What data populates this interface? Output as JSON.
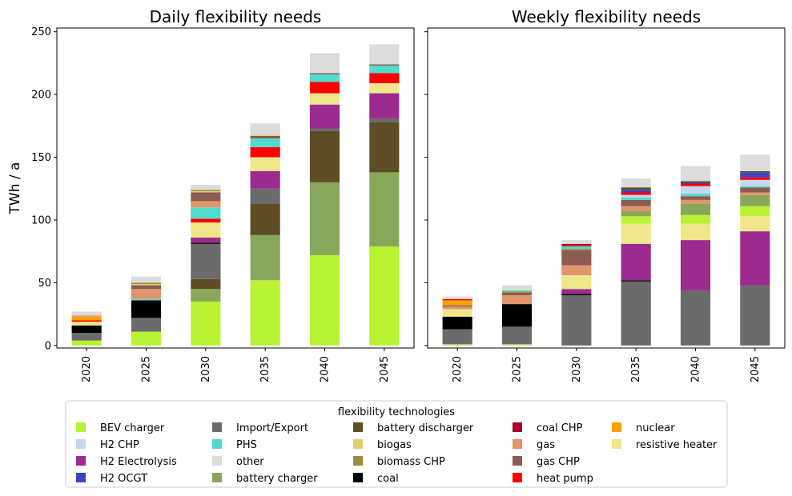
{
  "figure": {
    "ylabel": "TWh / a",
    "legend_title": "flexibility technologies",
    "legend_position": "bottom-center"
  },
  "chart_data": [
    {
      "type": "stacked-bar",
      "title": "Daily flexibility needs",
      "categories": [
        "2020",
        "2025",
        "2030",
        "2035",
        "2040",
        "2045"
      ],
      "ylim": [
        -2,
        253
      ],
      "yticks": [
        0,
        50,
        100,
        150,
        200,
        250
      ],
      "series": [
        {
          "name": "BEV charger",
          "values": [
            4,
            11,
            35,
            52,
            72,
            79
          ]
        },
        {
          "name": "battery charger",
          "values": [
            0,
            0,
            10,
            36,
            58,
            59
          ]
        },
        {
          "name": "battery discharger",
          "values": [
            0,
            0,
            8,
            25,
            41,
            40
          ]
        },
        {
          "name": "Import/Export",
          "values": [
            6,
            11,
            28,
            12,
            2,
            3
          ]
        },
        {
          "name": "coal",
          "values": [
            6,
            14,
            1,
            0,
            0,
            0
          ]
        },
        {
          "name": "H2 Electrolysis",
          "values": [
            0,
            0,
            4,
            14,
            19,
            20
          ]
        },
        {
          "name": "resistive heater",
          "values": [
            3,
            0,
            12,
            11,
            9,
            8
          ]
        },
        {
          "name": "heat pump",
          "values": [
            1,
            0,
            3,
            8,
            9,
            8
          ]
        },
        {
          "name": "nuclear",
          "values": [
            3,
            0,
            0,
            0,
            0,
            0
          ]
        },
        {
          "name": "PHS",
          "values": [
            0,
            1,
            9,
            7,
            6,
            6
          ]
        },
        {
          "name": "gas",
          "values": [
            1,
            8,
            5,
            0,
            0,
            0
          ]
        },
        {
          "name": "gas CHP",
          "values": [
            0,
            3,
            7,
            2,
            1,
            1
          ]
        },
        {
          "name": "biogas",
          "values": [
            0,
            1,
            1,
            1,
            0,
            0
          ]
        },
        {
          "name": "biomass CHP",
          "values": [
            0,
            1,
            1,
            0,
            0,
            0
          ]
        },
        {
          "name": "H2 OCGT",
          "values": [
            0,
            0,
            0,
            0,
            0,
            0
          ]
        },
        {
          "name": "H2 CHP",
          "values": [
            0,
            0,
            0,
            0,
            0,
            0
          ]
        },
        {
          "name": "coal CHP",
          "values": [
            0,
            0,
            0,
            0,
            0,
            0
          ]
        },
        {
          "name": "other",
          "values": [
            3,
            5,
            4,
            9,
            16,
            16
          ]
        }
      ]
    },
    {
      "type": "stacked-bar",
      "title": "Weekly flexibility needs",
      "categories": [
        "2020",
        "2025",
        "2030",
        "2035",
        "2040",
        "2045"
      ],
      "ylim": [
        -2,
        253
      ],
      "yticks": [
        0,
        50,
        100,
        150,
        200,
        250
      ],
      "series": [
        {
          "name": "biogas",
          "values": [
            1,
            1,
            0,
            0,
            0,
            0
          ]
        },
        {
          "name": "Import/Export",
          "values": [
            12,
            14,
            40,
            51,
            44,
            48
          ]
        },
        {
          "name": "coal",
          "values": [
            10,
            18,
            1,
            1,
            0,
            0
          ]
        },
        {
          "name": "H2 Electrolysis",
          "values": [
            0,
            0,
            4,
            29,
            40,
            43
          ]
        },
        {
          "name": "resistive heater",
          "values": [
            6,
            0,
            11,
            16,
            13,
            12
          ]
        },
        {
          "name": "BEV charger",
          "values": [
            0,
            0,
            0,
            6,
            7,
            8
          ]
        },
        {
          "name": "battery charger",
          "values": [
            0,
            0,
            0,
            4,
            9,
            9
          ]
        },
        {
          "name": "gas",
          "values": [
            2,
            7,
            8,
            4,
            3,
            2
          ]
        },
        {
          "name": "gas CHP",
          "values": [
            1,
            2,
            12,
            5,
            3,
            4
          ]
        },
        {
          "name": "biomass CHP",
          "values": [
            0,
            1,
            1,
            0,
            0,
            0
          ]
        },
        {
          "name": "PHS",
          "values": [
            0,
            1,
            2,
            2,
            2,
            1
          ]
        },
        {
          "name": "H2 CHP",
          "values": [
            0,
            0,
            0,
            2,
            6,
            5
          ]
        },
        {
          "name": "nuclear",
          "values": [
            4,
            0,
            0,
            0,
            0,
            0
          ]
        },
        {
          "name": "heat pump",
          "values": [
            1,
            0,
            1,
            2,
            2,
            2
          ]
        },
        {
          "name": "H2 OCGT",
          "values": [
            0,
            0,
            0,
            2,
            1,
            4
          ]
        },
        {
          "name": "battery discharger",
          "values": [
            0,
            0,
            0,
            2,
            1,
            1
          ]
        },
        {
          "name": "coal CHP",
          "values": [
            0,
            0,
            1,
            0,
            0,
            0
          ]
        },
        {
          "name": "other",
          "values": [
            2,
            4,
            3,
            7,
            12,
            13
          ]
        }
      ]
    }
  ],
  "legend": [
    {
      "label": "BEV charger",
      "color": "#b8f232"
    },
    {
      "label": "H2 CHP",
      "color": "#c6d8ef"
    },
    {
      "label": "H2 Electrolysis",
      "color": "#9b2b8f"
    },
    {
      "label": "H2 OCGT",
      "color": "#3a46c0"
    },
    {
      "label": "Import/Export",
      "color": "#6b6b6b"
    },
    {
      "label": "PHS",
      "color": "#51dbcc"
    },
    {
      "label": "other",
      "color": "#dcdcdc"
    },
    {
      "label": "battery charger",
      "color": "#88a75a"
    },
    {
      "label": "battery discharger",
      "color": "#5f4d26"
    },
    {
      "label": "biogas",
      "color": "#e0cf72"
    },
    {
      "label": "biomass CHP",
      "color": "#9a8f3c"
    },
    {
      "label": "coal",
      "color": "#000000"
    },
    {
      "label": "coal CHP",
      "color": "#a8062f"
    },
    {
      "label": "gas",
      "color": "#e1956b"
    },
    {
      "label": "gas CHP",
      "color": "#8c5b52"
    },
    {
      "label": "heat pump",
      "color": "#ff0000"
    },
    {
      "label": "nuclear",
      "color": "#ff9f00"
    },
    {
      "label": "resistive heater",
      "color": "#f0e68c"
    }
  ]
}
